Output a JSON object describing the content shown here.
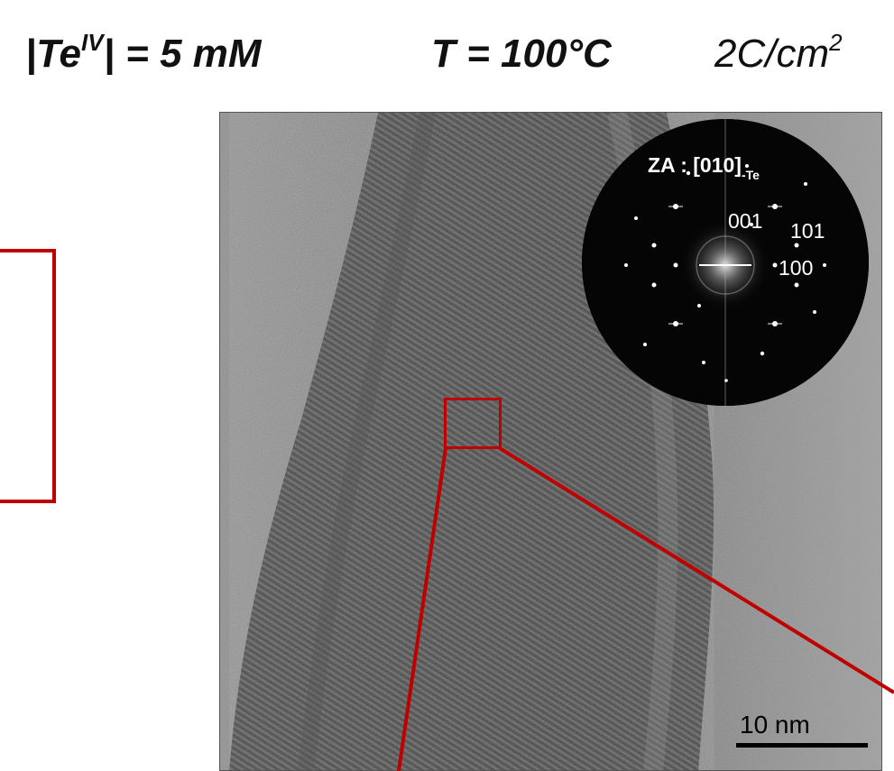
{
  "title": {
    "concentration_prefix": "|Te",
    "concentration_sup": "IV",
    "concentration_suffix": "| = 5 mM",
    "temperature": "T = 100°C",
    "charge_prefix": "2C/cm",
    "charge_sup": "2"
  },
  "fft_inset": {
    "zone_axis": "ZA : [010]",
    "zone_axis_sub": "-Te",
    "labels": [
      "001",
      "101",
      "100"
    ]
  },
  "scale_bar": {
    "label": "10 nm"
  },
  "colors": {
    "accent_red": "#c00000"
  }
}
